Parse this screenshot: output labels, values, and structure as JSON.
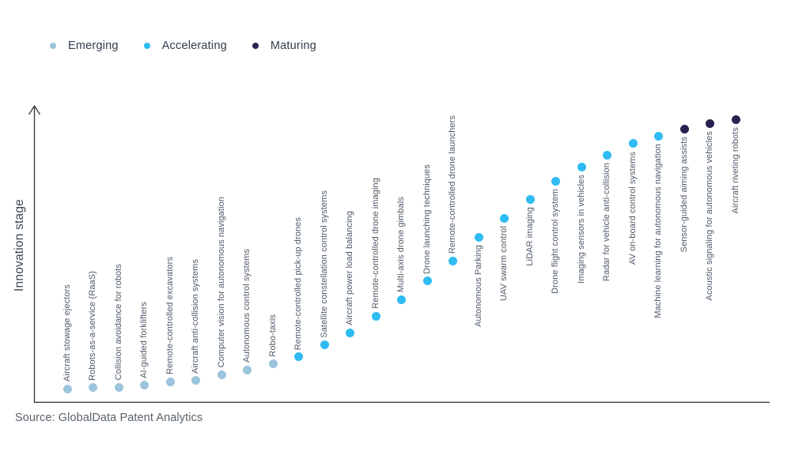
{
  "legend": {
    "items": [
      {
        "label": "Emerging",
        "stage": "emerging"
      },
      {
        "label": "Accelerating",
        "stage": "accelerating"
      },
      {
        "label": "Maturing",
        "stage": "maturing"
      }
    ]
  },
  "y_axis_label": "Innovation stage",
  "source_note": "Source: GlobalData Patent Analytics",
  "colors": {
    "emerging": "#9cc4dc",
    "accelerating": "#2ebcf2",
    "maturing": "#2a2153"
  },
  "chart_data": {
    "type": "scatter",
    "title": "",
    "xlabel": "",
    "ylabel": "Innovation stage",
    "legend": [
      "Emerging",
      "Accelerating",
      "Maturing"
    ],
    "legend_position": "top-left",
    "grid": false,
    "y_axis_arrow": true,
    "value_note": "value = relative innovation-stage height, 0-100 (no numeric ticks shown in figure)",
    "points": [
      {
        "label": "Aircraft stowage ejectors",
        "stage": "emerging",
        "value": 4.8,
        "label_position": "above"
      },
      {
        "label": "Robots-as-a-service (RaaS)",
        "stage": "emerging",
        "value": 5.1,
        "label_position": "above"
      },
      {
        "label": "Collision avoidance for robots",
        "stage": "emerging",
        "value": 5.3,
        "label_position": "above"
      },
      {
        "label": "AI-guided forklifters",
        "stage": "emerging",
        "value": 5.9,
        "label_position": "above"
      },
      {
        "label": "Remote-controlled excavators",
        "stage": "emerging",
        "value": 7.2,
        "label_position": "above"
      },
      {
        "label": "Aircraft anti-collision systems",
        "stage": "emerging",
        "value": 7.5,
        "label_position": "above"
      },
      {
        "label": "Computer vision for autonomous navigation",
        "stage": "emerging",
        "value": 9.6,
        "label_position": "above"
      },
      {
        "label": "Autonomous control systems",
        "stage": "emerging",
        "value": 11.2,
        "label_position": "above"
      },
      {
        "label": "Robo-taxis",
        "stage": "emerging",
        "value": 13.2,
        "label_position": "above"
      },
      {
        "label": "Remote-controlled pick-up drones",
        "stage": "accelerating",
        "value": 15.5,
        "label_position": "above"
      },
      {
        "label": "Satellite constellation control systems",
        "stage": "accelerating",
        "value": 19.5,
        "label_position": "above"
      },
      {
        "label": "Aircraft power load balancing",
        "stage": "accelerating",
        "value": 23.7,
        "label_position": "above"
      },
      {
        "label": "Remote-controlled drone imaging",
        "stage": "accelerating",
        "value": 29.3,
        "label_position": "above"
      },
      {
        "label": "Multi-axis drone gimbals",
        "stage": "accelerating",
        "value": 34.9,
        "label_position": "above"
      },
      {
        "label": "Drone launching techniques",
        "stage": "accelerating",
        "value": 41.1,
        "label_position": "above"
      },
      {
        "label": "Remote-controlled drone launchers",
        "stage": "accelerating",
        "value": 48.0,
        "label_position": "above"
      },
      {
        "label": "Autonomous Parking",
        "stage": "accelerating",
        "value": 56.0,
        "label_position": "below"
      },
      {
        "label": "UAV swarm control",
        "stage": "accelerating",
        "value": 62.4,
        "label_position": "below"
      },
      {
        "label": "LiDAR imaging",
        "stage": "accelerating",
        "value": 68.8,
        "label_position": "below"
      },
      {
        "label": "Drone flight control system",
        "stage": "accelerating",
        "value": 74.9,
        "label_position": "below"
      },
      {
        "label": "Imaging sensors in vehicles",
        "stage": "accelerating",
        "value": 79.7,
        "label_position": "below"
      },
      {
        "label": "Radar for vehicle anti-collision",
        "stage": "accelerating",
        "value": 83.7,
        "label_position": "below"
      },
      {
        "label": "AV on-board control systems",
        "stage": "accelerating",
        "value": 87.5,
        "label_position": "below"
      },
      {
        "label": "Machine learning for autonomous navigation",
        "stage": "accelerating",
        "value": 90.1,
        "label_position": "below"
      },
      {
        "label": "Sensor-guided aiming assists",
        "stage": "maturing",
        "value": 92.5,
        "label_position": "below"
      },
      {
        "label": "Acoustic signaling for autonomous vehicles",
        "stage": "maturing",
        "value": 94.4,
        "label_position": "below"
      },
      {
        "label": "Aircraft riveting robots",
        "stage": "maturing",
        "value": 95.7,
        "label_position": "below"
      }
    ]
  }
}
